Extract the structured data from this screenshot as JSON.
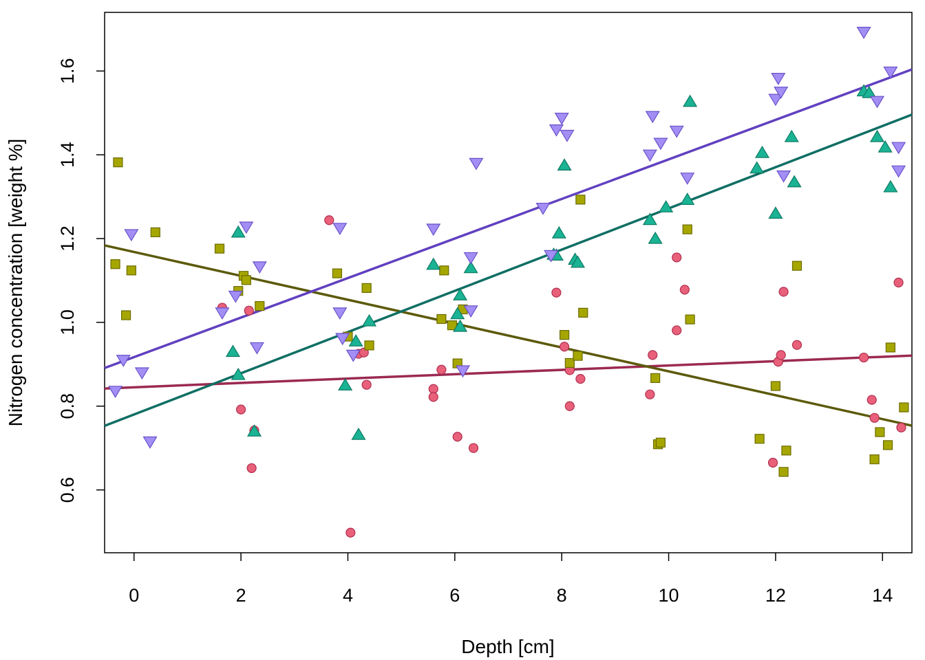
{
  "chart_data": {
    "type": "scatter",
    "title": "",
    "xlabel": "Depth [cm]",
    "ylabel": "Nitrogen concentration [weight %]",
    "xlim": [
      -0.55,
      14.55
    ],
    "ylim": [
      0.45,
      1.74
    ],
    "xticks": [
      "0",
      "2",
      "4",
      "6",
      "8",
      "10",
      "12",
      "14"
    ],
    "yticks": [
      "0.6",
      "0.8",
      "1.0",
      "1.2",
      "1.4",
      "1.6"
    ],
    "grid": false,
    "legend": "none",
    "series": [
      {
        "marker": "circle",
        "color": "#e8607a",
        "stroke": "#b0304e",
        "line": {
          "color": "#9b2a52",
          "intercept": 0.845,
          "slope": 0.0052
        },
        "points": [
          [
            1.65,
            1.035
          ],
          [
            2.0,
            0.792
          ],
          [
            2.15,
            1.028
          ],
          [
            2.2,
            0.652
          ],
          [
            2.25,
            0.742
          ],
          [
            3.65,
            1.244
          ],
          [
            4.05,
            0.498
          ],
          [
            4.2,
            0.925
          ],
          [
            4.3,
            0.928
          ],
          [
            4.35,
            0.851
          ],
          [
            5.6,
            0.841
          ],
          [
            5.6,
            0.822
          ],
          [
            5.75,
            0.887
          ],
          [
            6.05,
            0.727
          ],
          [
            6.35,
            0.7
          ],
          [
            7.9,
            1.071
          ],
          [
            8.05,
            0.942
          ],
          [
            8.15,
            0.8
          ],
          [
            8.15,
            0.886
          ],
          [
            8.35,
            0.865
          ],
          [
            9.65,
            0.828
          ],
          [
            9.7,
            0.922
          ],
          [
            10.15,
            1.155
          ],
          [
            10.15,
            0.981
          ],
          [
            10.3,
            1.078
          ],
          [
            11.95,
            0.665
          ],
          [
            12.05,
            0.906
          ],
          [
            12.1,
            0.922
          ],
          [
            12.15,
            1.073
          ],
          [
            12.4,
            0.946
          ],
          [
            13.65,
            0.916
          ],
          [
            13.8,
            0.815
          ],
          [
            13.85,
            0.772
          ],
          [
            14.3,
            1.095
          ],
          [
            14.35,
            0.749
          ]
        ]
      },
      {
        "marker": "square",
        "color": "#a6a600",
        "stroke": "#6b6b00",
        "line": {
          "color": "#5c5a0a",
          "intercept": 1.168,
          "slope": -0.0285
        },
        "points": [
          [
            -0.3,
            1.382
          ],
          [
            -0.35,
            1.139
          ],
          [
            -0.15,
            1.017
          ],
          [
            -0.05,
            1.124
          ],
          [
            0.4,
            1.215
          ],
          [
            1.6,
            1.176
          ],
          [
            1.95,
            1.075
          ],
          [
            2.05,
            1.111
          ],
          [
            2.1,
            1.101
          ],
          [
            2.35,
            1.039
          ],
          [
            3.8,
            1.117
          ],
          [
            4.0,
            0.966
          ],
          [
            4.35,
            1.082
          ],
          [
            4.4,
            0.945
          ],
          [
            5.75,
            1.008
          ],
          [
            5.8,
            1.124
          ],
          [
            5.95,
            0.993
          ],
          [
            6.05,
            0.902
          ],
          [
            6.15,
            1.031
          ],
          [
            8.05,
            0.97
          ],
          [
            8.15,
            0.903
          ],
          [
            8.3,
            0.92
          ],
          [
            8.35,
            1.293
          ],
          [
            8.4,
            1.023
          ],
          [
            9.75,
            0.867
          ],
          [
            9.8,
            0.709
          ],
          [
            9.85,
            0.713
          ],
          [
            10.35,
            1.222
          ],
          [
            10.4,
            1.007
          ],
          [
            11.7,
            0.722
          ],
          [
            12.0,
            0.848
          ],
          [
            12.15,
            0.643
          ],
          [
            12.2,
            0.694
          ],
          [
            12.4,
            1.135
          ],
          [
            13.85,
            0.673
          ],
          [
            13.95,
            0.738
          ],
          [
            14.1,
            0.707
          ],
          [
            14.15,
            0.94
          ],
          [
            14.4,
            0.797
          ]
        ]
      },
      {
        "marker": "triangle-up",
        "color": "#1ab394",
        "stroke": "#0e7a64",
        "line": {
          "color": "#0f6e64",
          "intercept": 0.78,
          "slope": 0.0492
        },
        "points": [
          [
            1.85,
            0.93
          ],
          [
            1.95,
            1.215
          ],
          [
            1.95,
            0.875
          ],
          [
            2.25,
            0.74
          ],
          [
            3.95,
            0.85
          ],
          [
            4.15,
            0.955
          ],
          [
            4.2,
            0.732
          ],
          [
            4.4,
            1.003
          ],
          [
            5.6,
            1.138
          ],
          [
            6.05,
            1.02
          ],
          [
            6.1,
            0.99
          ],
          [
            6.1,
            1.065
          ],
          [
            6.3,
            1.13
          ],
          [
            7.85,
            1.162
          ],
          [
            7.9,
            1.16
          ],
          [
            7.95,
            1.213
          ],
          [
            8.05,
            1.375
          ],
          [
            8.25,
            1.15
          ],
          [
            8.3,
            1.143
          ],
          [
            9.65,
            1.245
          ],
          [
            9.75,
            1.2
          ],
          [
            9.95,
            1.275
          ],
          [
            10.35,
            1.293
          ],
          [
            10.4,
            1.527
          ],
          [
            11.65,
            1.368
          ],
          [
            11.75,
            1.405
          ],
          [
            12.0,
            1.26
          ],
          [
            12.3,
            1.443
          ],
          [
            12.35,
            1.335
          ],
          [
            13.65,
            1.552
          ],
          [
            13.75,
            1.548
          ],
          [
            13.9,
            1.443
          ],
          [
            14.05,
            1.418
          ],
          [
            14.15,
            1.323
          ]
        ]
      },
      {
        "marker": "triangle-down",
        "color": "#a38ef5",
        "stroke": "#6a52c8",
        "line": {
          "color": "#6040c0",
          "intercept": 0.917,
          "slope": 0.0472
        },
        "points": [
          [
            -0.35,
            0.836
          ],
          [
            -0.2,
            0.91
          ],
          [
            -0.05,
            1.21
          ],
          [
            0.15,
            0.88
          ],
          [
            0.3,
            0.715
          ],
          [
            1.65,
            1.023
          ],
          [
            1.9,
            1.063
          ],
          [
            2.1,
            1.228
          ],
          [
            2.3,
            0.94
          ],
          [
            2.35,
            1.133
          ],
          [
            3.85,
            1.225
          ],
          [
            3.85,
            1.023
          ],
          [
            3.9,
            0.962
          ],
          [
            4.1,
            0.922
          ],
          [
            5.6,
            1.223
          ],
          [
            6.15,
            0.885
          ],
          [
            6.3,
            1.155
          ],
          [
            6.3,
            1.028
          ],
          [
            6.4,
            1.38
          ],
          [
            7.65,
            1.273
          ],
          [
            7.8,
            1.16
          ],
          [
            7.9,
            1.46
          ],
          [
            8.0,
            1.488
          ],
          [
            8.1,
            1.447
          ],
          [
            9.65,
            1.4
          ],
          [
            9.7,
            1.492
          ],
          [
            9.85,
            1.428
          ],
          [
            10.15,
            1.457
          ],
          [
            10.35,
            1.345
          ],
          [
            12.0,
            1.533
          ],
          [
            12.05,
            1.583
          ],
          [
            12.1,
            1.55
          ],
          [
            12.15,
            1.35
          ],
          [
            13.65,
            1.693
          ],
          [
            13.9,
            1.528
          ],
          [
            14.15,
            1.598
          ],
          [
            14.3,
            1.362
          ],
          [
            14.3,
            1.418
          ]
        ]
      }
    ]
  }
}
